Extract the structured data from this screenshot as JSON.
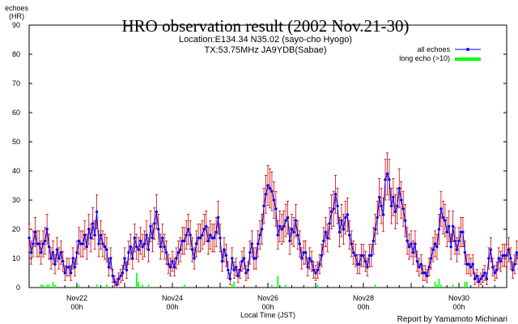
{
  "chart_data": {
    "type": "line",
    "title": "HRO observation result (2002 Nov.21-30)",
    "subtitle": [
      "Location:E134.34 N35.02 (sayo-cho Hyogo)",
      "TX:53.75MHz JA9YDB(Sabae)"
    ],
    "ylabel": [
      "echoes",
      "(HR)"
    ],
    "xlabel": "Local Time (JST)",
    "ylim": [
      0,
      90
    ],
    "yticks": [
      "0",
      "10",
      "20",
      "30",
      "40",
      "50",
      "60",
      "70",
      "80",
      "90"
    ],
    "xlim": [
      0,
      240
    ],
    "xticks": [
      {
        "x": 24,
        "line1": "Nov22",
        "line2": "00h"
      },
      {
        "x": 72,
        "line1": "Nov24",
        "line2": "00h"
      },
      {
        "x": 120,
        "line1": "Nov26",
        "line2": "00h"
      },
      {
        "x": 168,
        "line1": "Nov28",
        "line2": "00h"
      },
      {
        "x": 216,
        "line1": "Nov30",
        "line2": "00h"
      }
    ],
    "legend": {
      "placement": "top-right",
      "entries": [
        {
          "label": "all echoes",
          "color": "#0000ff"
        },
        {
          "label": "long echo (>10)",
          "color": "#00ff00"
        }
      ]
    },
    "series": [
      {
        "name": "all echoes",
        "color": "#0000ff",
        "error_color": "#cc0000",
        "values": [
          17,
          12,
          15,
          19,
          15,
          15,
          12,
          15,
          16,
          20,
          14,
          10,
          12,
          8,
          13,
          10,
          12,
          9,
          5,
          7,
          7,
          5,
          10,
          7,
          12,
          16,
          15,
          15,
          18,
          14,
          20,
          17,
          22,
          18,
          26,
          15,
          18,
          15,
          14,
          13,
          7,
          10,
          4,
          2,
          1,
          3,
          4,
          5,
          10,
          6,
          12,
          14,
          10,
          17,
          14,
          13,
          16,
          14,
          15,
          18,
          13,
          21,
          17,
          22,
          26,
          20,
          14,
          17,
          14,
          12,
          8,
          7,
          9,
          7,
          10,
          12,
          13,
          16,
          16,
          18,
          20,
          18,
          13,
          10,
          15,
          17,
          17,
          18,
          20,
          21,
          16,
          18,
          17,
          17,
          19,
          24,
          17,
          9,
          13,
          11,
          6,
          3,
          10,
          6,
          7,
          4,
          6,
          9,
          10,
          5,
          6,
          12,
          15,
          10,
          10,
          15,
          18,
          20,
          28,
          32,
          35,
          34,
          33,
          30,
          27,
          18,
          21,
          20,
          21,
          23,
          24,
          16,
          20,
          19,
          23,
          18,
          15,
          10,
          12,
          12,
          7,
          10,
          9,
          6,
          5,
          6,
          8,
          11,
          16,
          19,
          17,
          22,
          26,
          27,
          32,
          28,
          19,
          23,
          20,
          24,
          25,
          18,
          15,
          12,
          11,
          8,
          8,
          11,
          11,
          9,
          7,
          11,
          11,
          16,
          20,
          24,
          31,
          28,
          25,
          37,
          39,
          37,
          28,
          31,
          26,
          28,
          34,
          30,
          27,
          23,
          16,
          14,
          15,
          12,
          15,
          9,
          7,
          8,
          5,
          5,
          4,
          7,
          10,
          13,
          15,
          14,
          20,
          27,
          24,
          23,
          19,
          21,
          14,
          21,
          16,
          13,
          16,
          19,
          19,
          12,
          8,
          8,
          7,
          8,
          3,
          4,
          2,
          3,
          4,
          5,
          3,
          10,
          13,
          7,
          5,
          6,
          10,
          9,
          11,
          11,
          11,
          13,
          10,
          6,
          8,
          12,
          10,
          9,
          14,
          11,
          7,
          10,
          8,
          11,
          10,
          12,
          13,
          6,
          5,
          6,
          6,
          3,
          2,
          4,
          10,
          12,
          15,
          13,
          11,
          19,
          16,
          13,
          17,
          18,
          20,
          17,
          15,
          9,
          7,
          13,
          9,
          6,
          4,
          1,
          4,
          7,
          7,
          7,
          4,
          6,
          7,
          4,
          11,
          14,
          18,
          21,
          13
        ]
      },
      {
        "name": "long echo (>10)",
        "color": "#00ff00",
        "values": [
          0,
          0,
          0,
          0,
          0,
          0,
          1,
          1,
          0,
          1,
          1,
          0,
          2,
          1,
          0,
          0,
          0,
          0,
          0,
          0,
          0,
          0,
          0,
          0,
          0,
          1,
          0,
          0,
          0,
          0,
          0,
          0,
          0,
          0,
          1,
          0,
          0,
          0,
          0,
          1,
          0,
          0,
          0,
          0,
          0,
          0,
          0,
          0,
          0,
          0,
          0,
          0,
          0,
          0,
          5,
          2,
          0,
          1,
          0,
          0,
          1,
          0,
          0,
          0,
          0,
          0,
          0,
          0,
          0,
          0,
          0,
          0,
          0,
          0,
          0,
          0,
          0,
          0,
          1,
          0,
          0,
          0,
          0,
          0,
          0,
          0,
          0,
          0,
          0,
          0,
          0,
          0,
          0,
          0,
          0,
          0,
          0,
          0,
          0,
          0,
          0,
          0,
          1,
          2,
          0,
          0,
          0,
          0,
          0,
          0,
          0,
          0,
          0,
          0,
          0,
          0,
          0,
          0,
          0,
          0,
          0,
          0,
          1,
          0,
          0,
          4,
          0,
          0,
          0,
          1,
          0,
          0,
          0,
          0,
          0,
          0,
          0,
          0,
          0,
          0,
          0,
          0,
          0,
          0,
          0,
          1,
          0,
          0,
          0,
          0,
          0,
          0,
          0,
          0,
          0,
          0,
          0,
          0,
          0,
          0,
          0,
          0,
          0,
          0,
          0,
          0,
          0,
          0,
          0,
          0,
          0,
          0,
          0,
          0,
          1,
          0,
          0,
          0,
          0,
          0,
          0,
          0,
          0,
          0,
          0,
          0,
          0,
          0,
          0,
          0,
          0,
          0,
          0,
          0,
          0,
          0,
          0,
          0,
          0,
          0,
          0,
          0,
          0,
          0,
          2,
          1,
          3,
          1,
          0,
          0,
          0,
          0,
          0,
          1,
          0,
          0,
          0,
          0,
          0,
          2,
          2,
          0,
          0,
          0,
          0,
          0,
          0,
          0,
          0,
          0,
          0,
          0,
          0,
          0,
          0,
          0,
          0,
          0,
          0,
          0,
          0,
          0,
          0,
          0,
          0,
          0,
          0,
          0,
          0,
          0,
          0,
          0,
          3,
          2,
          1,
          1,
          0,
          0,
          0,
          0,
          0,
          0,
          0,
          0,
          0,
          0,
          0,
          0,
          0,
          0,
          0,
          0,
          0,
          0,
          0,
          0,
          0,
          0,
          0,
          0,
          0,
          0,
          0,
          0,
          0,
          0,
          0,
          0,
          0,
          0,
          0,
          0,
          0,
          0
        ]
      }
    ]
  },
  "footer": "Report by Yamamoto Michinari"
}
